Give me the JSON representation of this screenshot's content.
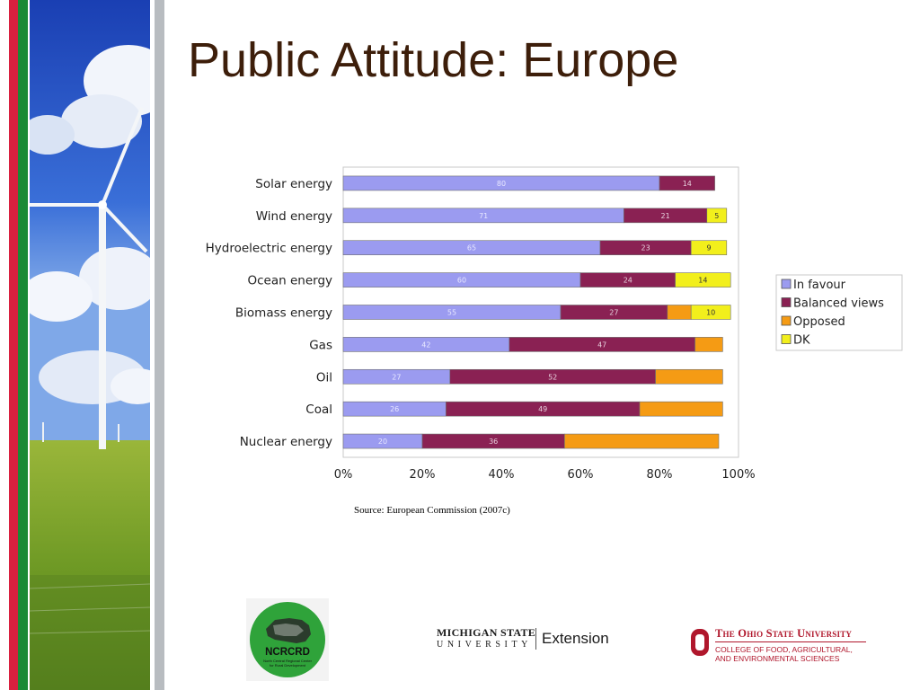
{
  "slide": {
    "title": "Public Attitude: Europe",
    "source": "Source: European Commission (2007c)"
  },
  "colors": {
    "stripe_red": "#d9203f",
    "stripe_green": "#1a8a35",
    "stripe_grey": "#b8bcc0",
    "title": "#3d1e0a",
    "in_favour": "#9b9bf0",
    "balanced": "#8a2153",
    "opposed": "#f59b14",
    "dk": "#f2ef1c"
  },
  "logos": {
    "ncrcrd": {
      "acronym": "NCRCRD",
      "line1": "North Central Regional Center",
      "line2": "for Rural Development"
    },
    "msu": {
      "name": "MICHIGAN STATE",
      "sub": "UNIVERSITY",
      "unit": "Extension"
    },
    "osu": {
      "name": "The Ohio State University",
      "line1": "COLLEGE OF FOOD, AGRICULTURAL,",
      "line2": "AND ENVIRONMENTAL SCIENCES"
    }
  },
  "chart_data": {
    "type": "bar",
    "orientation": "horizontal",
    "stacked": true,
    "categories": [
      "Solar energy",
      "Wind energy",
      "Hydroelectric energy",
      "Ocean energy",
      "Biomass energy",
      "Gas",
      "Oil",
      "Coal",
      "Nuclear energy"
    ],
    "series": [
      {
        "name": "In favour",
        "color": "#9b9bf0",
        "values": [
          80,
          71,
          65,
          60,
          55,
          42,
          27,
          26,
          20
        ],
        "labels": [
          "80",
          "71",
          "65",
          "60",
          "55",
          "42",
          "27",
          "26",
          "20"
        ]
      },
      {
        "name": "Balanced views",
        "color": "#8a2153",
        "values": [
          14,
          21,
          23,
          24,
          27,
          47,
          52,
          49,
          36
        ],
        "labels": [
          "14",
          "21",
          "23",
          "24",
          "27",
          "47",
          "52",
          "49",
          "36"
        ]
      },
      {
        "name": "Opposed",
        "color": "#f59b14",
        "values": [
          0,
          0,
          0,
          0,
          6,
          7,
          17,
          21,
          39
        ],
        "labels": [
          "",
          "",
          "",
          "",
          "",
          "",
          "",
          "",
          ""
        ]
      },
      {
        "name": "DK",
        "color": "#f2ef1c",
        "values": [
          0,
          5,
          9,
          14,
          10,
          0,
          0,
          0,
          0
        ],
        "labels": [
          "",
          "5",
          "9",
          "14",
          "10",
          "",
          "",
          "",
          ""
        ]
      }
    ],
    "xlim": [
      0,
      100
    ],
    "xticks": [
      "0%",
      "20%",
      "40%",
      "60%",
      "80%",
      "100%"
    ],
    "legend_position": "right",
    "grid": false
  }
}
